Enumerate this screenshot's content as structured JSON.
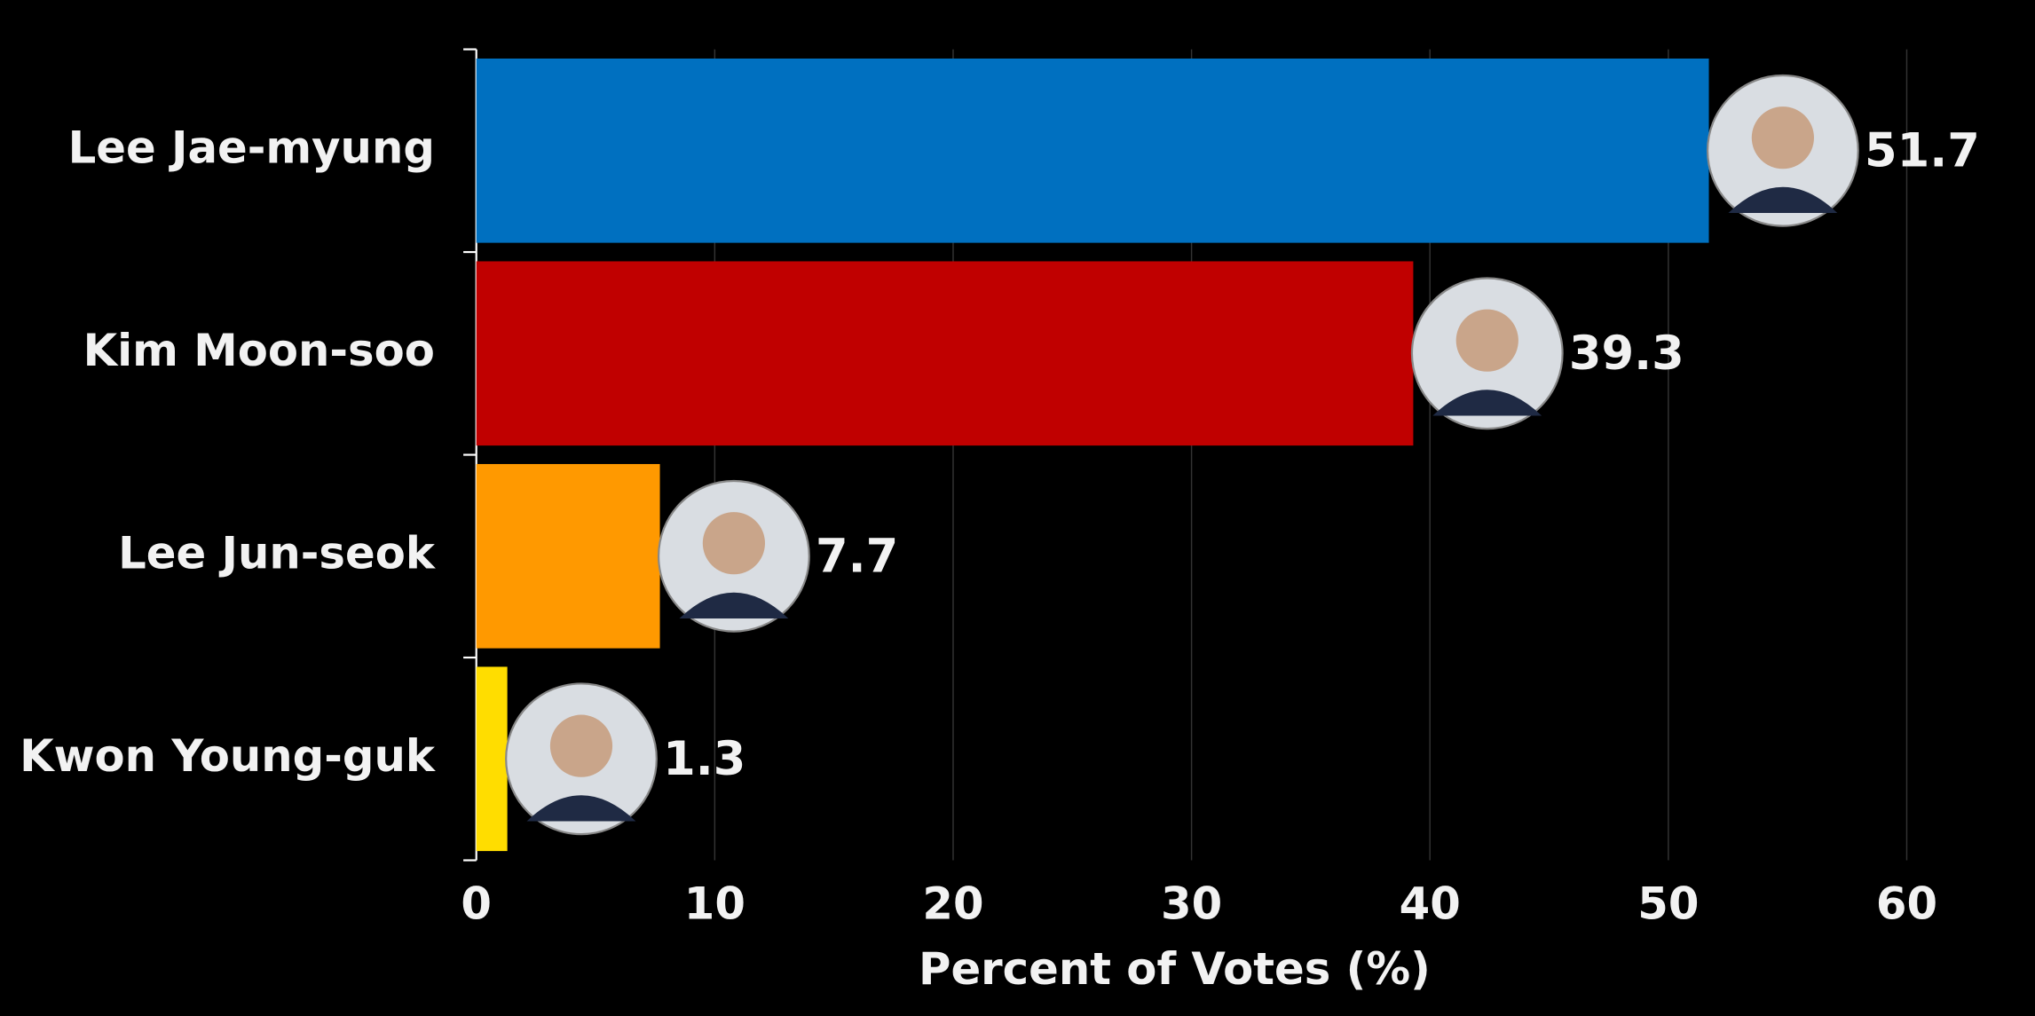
{
  "chart_data": {
    "type": "barh",
    "categories": [
      "Lee Jae-myung",
      "Kim Moon-soo",
      "Lee Jun-seok",
      "Kwon Young-guk"
    ],
    "values": [
      51.7,
      39.3,
      7.7,
      1.3
    ],
    "colors": [
      "#0070c0",
      "#c00000",
      "#ff9900",
      "#ffdd00"
    ],
    "xlabel": "Percent of Votes (%)",
    "xlim": [
      0,
      65
    ],
    "xticks": [
      0,
      10,
      20,
      30,
      40,
      50,
      60
    ],
    "grid": true
  }
}
